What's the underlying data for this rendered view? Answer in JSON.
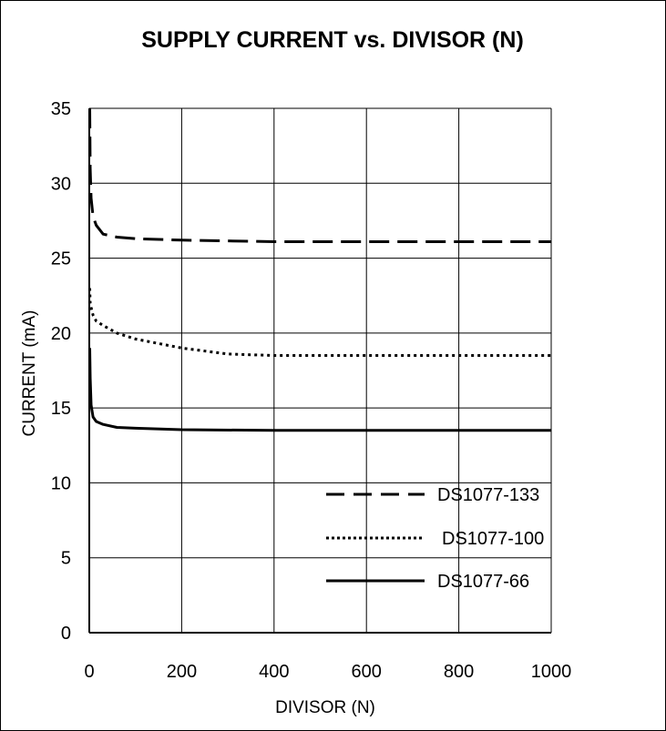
{
  "chart_data": {
    "type": "line",
    "title": "SUPPLY CURRENT vs. DIVISOR (N)",
    "xlabel": "DIVISOR (N)",
    "ylabel": "CURRENT (mA)",
    "xlim": [
      0,
      1000
    ],
    "ylim": [
      0,
      35
    ],
    "xticks": [
      "0",
      "200",
      "400",
      "600",
      "800",
      "1000"
    ],
    "yticks": [
      "0",
      "5",
      "10",
      "15",
      "20",
      "25",
      "30",
      "35"
    ],
    "grid": true,
    "legend_position": "bottom-right",
    "series": [
      {
        "name": "DS1077-133",
        "style": "dashed",
        "color": "#000000",
        "x": [
          1,
          2,
          4,
          8,
          15,
          30,
          60,
          100,
          200,
          400,
          600,
          800,
          1000
        ],
        "y": [
          35,
          31,
          29,
          27.8,
          27.2,
          26.6,
          26.4,
          26.3,
          26.2,
          26.1,
          26.1,
          26.1,
          26.1
        ]
      },
      {
        "name": "DS1077-100",
        "style": "dotted",
        "color": "#000000",
        "x": [
          1,
          2,
          4,
          8,
          15,
          30,
          60,
          100,
          200,
          300,
          400,
          600,
          800,
          1000
        ],
        "y": [
          23,
          22,
          21.7,
          21.2,
          20.8,
          20.5,
          20,
          19.6,
          19,
          18.6,
          18.5,
          18.5,
          18.5,
          18.5
        ]
      },
      {
        "name": "DS1077-66",
        "style": "solid",
        "color": "#000000",
        "x": [
          1,
          2,
          4,
          8,
          15,
          30,
          60,
          100,
          200,
          400,
          600,
          800,
          1000
        ],
        "y": [
          19,
          17,
          15.2,
          14.4,
          14.1,
          13.9,
          13.7,
          13.65,
          13.55,
          13.5,
          13.5,
          13.5,
          13.5
        ]
      }
    ]
  }
}
